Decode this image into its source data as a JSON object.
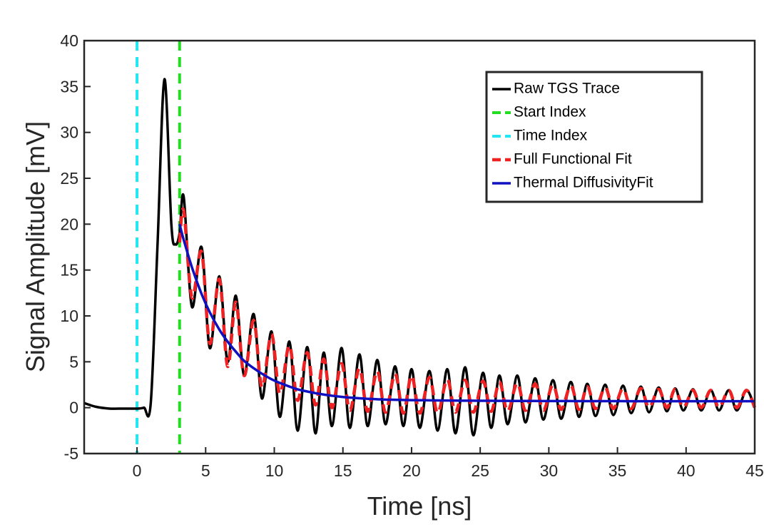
{
  "chart_data": {
    "type": "line",
    "x_label": "Time [ns]",
    "y_label": "Signal Amplitude [mV]",
    "xlim": [
      -3.85,
      45
    ],
    "ylim": [
      -5,
      40
    ],
    "xticks": [
      0,
      5,
      10,
      15,
      20,
      25,
      30,
      35,
      40,
      45
    ],
    "yticks": [
      -5,
      0,
      5,
      10,
      15,
      20,
      25,
      30,
      35,
      40
    ],
    "legend": "northeast",
    "x": [
      -3.85,
      -3,
      -2,
      -1,
      0,
      0.5,
      1,
      1.5,
      2,
      2.5,
      2.8,
      3.1,
      3.4,
      4.0,
      4.7,
      5.3,
      6.0,
      6.6,
      7.2,
      7.8,
      8.5,
      9.1,
      9.8,
      10.4,
      11.1,
      11.7,
      12.4,
      13.0,
      13.6,
      14.2,
      14.9,
      15.5,
      16.2,
      16.8,
      17.5,
      18.1,
      18.8,
      19.4,
      20.0,
      20.6,
      21.3,
      21.9,
      22.6,
      23.2,
      23.9,
      24.5,
      25.2,
      25.8,
      26.4,
      27.0,
      27.7,
      28.3,
      29.0,
      29.6,
      30.3,
      30.9,
      31.6,
      32.2,
      32.8,
      33.4,
      34.1,
      34.7,
      35.4,
      36.0,
      36.7,
      37.3,
      38.0,
      38.6,
      39.2,
      39.8,
      40.5,
      41.1,
      41.8,
      42.4,
      43.1,
      43.7,
      44.4,
      45.0
    ],
    "series": [
      {
        "name": "Raw TGS Trace",
        "color": "#000000",
        "style": "solid",
        "width": 3.5,
        "values": [
          0.5,
          0.1,
          -0.1,
          -0.1,
          -0.1,
          0,
          0.5,
          18,
          35.8,
          20,
          17.8,
          19,
          23,
          11,
          17.5,
          6.5,
          14.3,
          5.0,
          12.2,
          3.5,
          10.2,
          1.0,
          8.3,
          -1.0,
          7.2,
          -2.5,
          6.6,
          -2.8,
          6.0,
          -2.0,
          6.5,
          -2.2,
          5.8,
          -2.0,
          5.2,
          -1.8,
          4.5,
          -2.0,
          4.2,
          -2.2,
          4.0,
          -2.5,
          4.2,
          -2.8,
          4.4,
          -3.0,
          3.8,
          -2.2,
          3.5,
          -1.8,
          3.5,
          -1.6,
          3.2,
          -1.3,
          3.0,
          -1.2,
          2.8,
          -1.0,
          2.6,
          -0.9,
          2.5,
          -0.8,
          2.4,
          -0.6,
          2.3,
          -0.5,
          2.2,
          -0.4,
          2.1,
          -0.3,
          2.0,
          -0.3,
          1.9,
          -0.3,
          1.9,
          -0.3,
          1.9,
          0.0
        ]
      },
      {
        "name": "Start Index",
        "color": "#22dd22",
        "style": "dashed",
        "width": 4,
        "x_value": 3.1
      },
      {
        "name": "Time Index",
        "color": "#22e6f0",
        "style": "dashed",
        "width": 4,
        "x_value": 0
      },
      {
        "name": "Full Functional Fit",
        "color": "#ee2222",
        "style": "dashed",
        "width": 4.5,
        "values": [
          null,
          null,
          null,
          null,
          null,
          null,
          null,
          null,
          null,
          null,
          null,
          18,
          21.5,
          12,
          17,
          7,
          14,
          4.5,
          11.5,
          3.5,
          9.5,
          2.2,
          8,
          1.5,
          6.8,
          0.8,
          6,
          0.3,
          5.3,
          0,
          4.8,
          -0.3,
          4.3,
          -0.4,
          4,
          -0.5,
          3.7,
          -0.6,
          3.5,
          -0.6,
          3.3,
          -0.6,
          3.1,
          -0.5,
          3,
          -0.5,
          2.9,
          -0.4,
          2.8,
          -0.4,
          2.7,
          -0.3,
          2.6,
          -0.3,
          2.5,
          -0.2,
          2.4,
          -0.2,
          2.3,
          -0.1,
          2.2,
          -0.1,
          2.1,
          -0.1,
          2.1,
          0,
          2.0,
          0,
          2.0,
          0,
          1.9,
          0,
          1.9,
          0,
          1.9,
          0,
          1.9,
          0
        ]
      },
      {
        "name": "Thermal DiffusivityFit",
        "color": "#1010c0",
        "style": "solid",
        "width": 3.5,
        "values": [
          null,
          null,
          null,
          null,
          null,
          null,
          null,
          null,
          null,
          null,
          null,
          20.0,
          18.3,
          15.3,
          12.4,
          10.4,
          8.5,
          7.2,
          6.1,
          5.1,
          4.3,
          3.7,
          3.1,
          2.7,
          2.3,
          2.0,
          1.76,
          1.58,
          1.43,
          1.3,
          1.18,
          1.1,
          1.02,
          0.97,
          0.92,
          0.88,
          0.86,
          0.84,
          0.82,
          0.81,
          0.8,
          0.79,
          0.78,
          0.77,
          0.76,
          0.76,
          0.75,
          0.75,
          0.74,
          0.74,
          0.73,
          0.73,
          0.73,
          0.72,
          0.72,
          0.72,
          0.72,
          0.71,
          0.71,
          0.71,
          0.71,
          0.71,
          0.71,
          0.7,
          0.7,
          0.7,
          0.7,
          0.7,
          0.7,
          0.7,
          0.7,
          0.7,
          0.7,
          0.7,
          0.7,
          0.7,
          0.7,
          0.7
        ]
      }
    ]
  }
}
